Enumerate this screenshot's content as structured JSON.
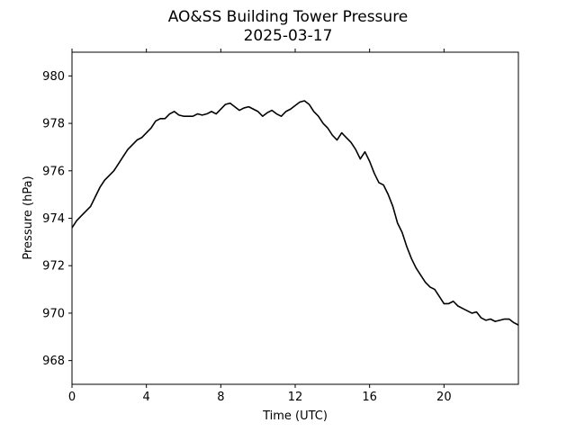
{
  "chart_data": {
    "type": "line",
    "title": "AO&SS Building Tower Pressure",
    "subtitle": "2025-03-17",
    "xlabel": "Time (UTC)",
    "ylabel": "Pressure (hPa)",
    "xlim": [
      0,
      24
    ],
    "ylim": [
      967,
      981
    ],
    "xticks": [
      0,
      4,
      8,
      12,
      16,
      20
    ],
    "yticks": [
      968,
      970,
      972,
      974,
      976,
      978,
      980
    ],
    "grid": false,
    "line_color": "#000000",
    "series": [
      {
        "x": [
          0,
          0.25,
          0.5,
          0.75,
          1.0,
          1.25,
          1.5,
          1.75,
          2.0,
          2.25,
          2.5,
          2.75,
          3.0,
          3.25,
          3.5,
          3.75,
          4.0,
          4.25,
          4.5,
          4.75,
          5.0,
          5.25,
          5.5,
          5.75,
          6.0,
          6.25,
          6.5,
          6.75,
          7.0,
          7.25,
          7.5,
          7.75,
          8.0,
          8.25,
          8.5,
          8.75,
          9.0,
          9.25,
          9.5,
          9.75,
          10.0,
          10.25,
          10.5,
          10.75,
          11.0,
          11.25,
          11.5,
          11.75,
          12.0,
          12.25,
          12.5,
          12.75,
          13.0,
          13.25,
          13.5,
          13.75,
          14.0,
          14.25,
          14.5,
          14.75,
          15.0,
          15.25,
          15.5,
          15.75,
          16.0,
          16.25,
          16.5,
          16.75,
          17.0,
          17.25,
          17.5,
          17.75,
          18.0,
          18.25,
          18.5,
          18.75,
          19.0,
          19.25,
          19.5,
          19.75,
          20.0,
          20.25,
          20.5,
          20.75,
          21.0,
          21.25,
          21.5,
          21.75,
          22.0,
          22.25,
          22.5,
          22.75,
          23.0,
          23.25,
          23.5,
          23.75,
          24.0
        ],
        "y": [
          973.6,
          973.9,
          974.1,
          974.3,
          974.5,
          974.9,
          975.3,
          975.6,
          975.8,
          976.0,
          976.3,
          976.6,
          976.9,
          977.1,
          977.3,
          977.4,
          977.6,
          977.8,
          978.1,
          978.2,
          978.2,
          978.4,
          978.5,
          978.35,
          978.3,
          978.3,
          978.3,
          978.4,
          978.35,
          978.4,
          978.5,
          978.4,
          978.6,
          978.8,
          978.85,
          978.7,
          978.55,
          978.65,
          978.7,
          978.6,
          978.5,
          978.3,
          978.45,
          978.55,
          978.4,
          978.3,
          978.5,
          978.6,
          978.75,
          978.9,
          978.95,
          978.8,
          978.5,
          978.3,
          978.0,
          977.8,
          977.5,
          977.3,
          977.6,
          977.4,
          977.2,
          976.9,
          976.5,
          976.8,
          976.4,
          975.9,
          975.5,
          975.4,
          975.0,
          974.5,
          973.8,
          973.4,
          972.8,
          972.3,
          971.9,
          971.6,
          971.3,
          971.1,
          971.0,
          970.7,
          970.4,
          970.4,
          970.5,
          970.3,
          970.2,
          970.1,
          970.0,
          970.05,
          969.8,
          969.7,
          969.75,
          969.65,
          969.7,
          969.75,
          969.75,
          969.6,
          969.5
        ]
      }
    ]
  }
}
